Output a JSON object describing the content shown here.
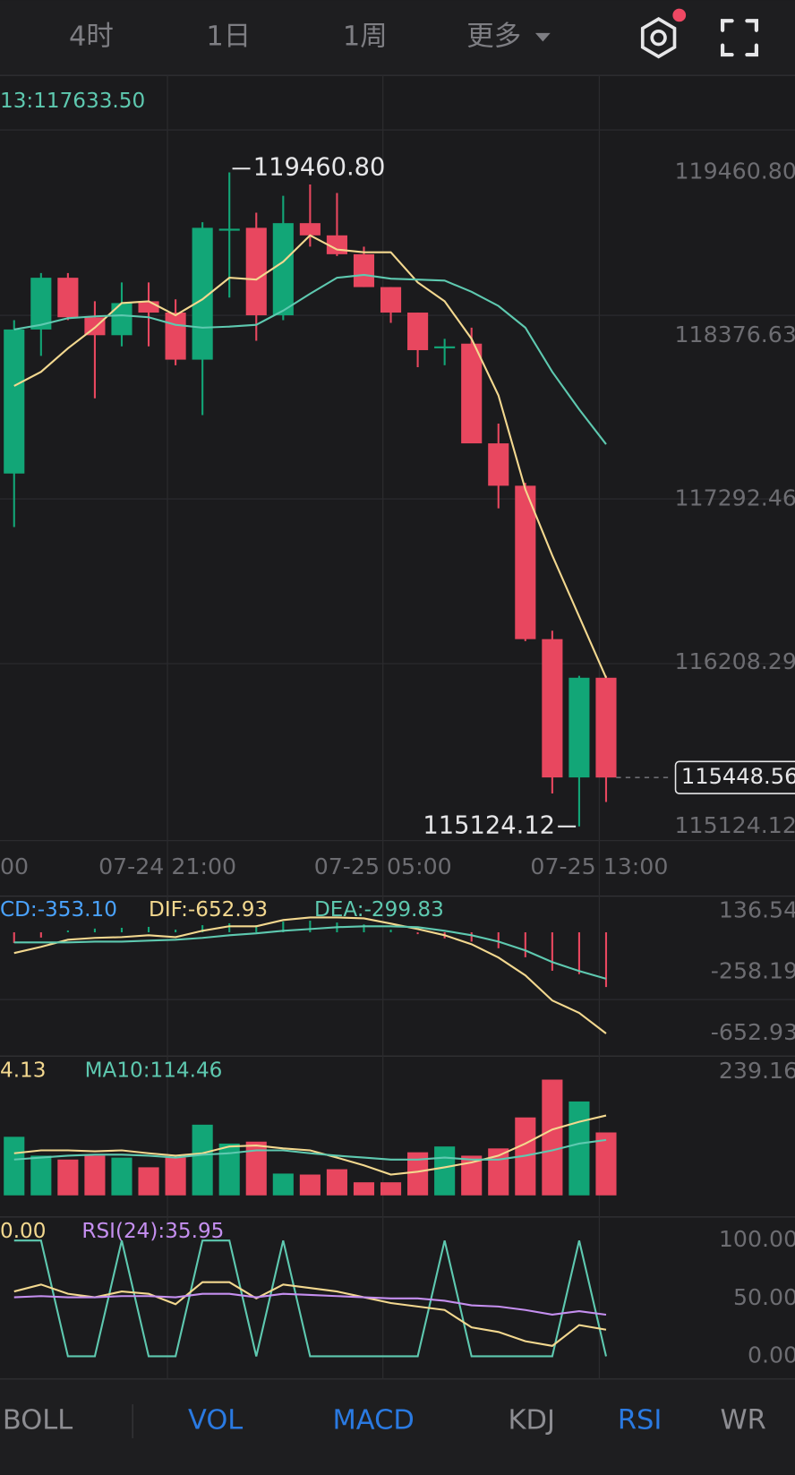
{
  "header": {
    "tabs": [
      "4时",
      "1日",
      "1周",
      "更多"
    ]
  },
  "chart_data": {
    "type": "candlestick",
    "ma_label": "13:117633.50",
    "xtick_labels": [
      "00",
      "07-24 21:00",
      "07-25 05:00",
      "07-25 13:00"
    ],
    "up_color": "#12a677",
    "down_color": "#e8475f",
    "open": [
      117464,
      118419,
      118762,
      118500,
      118381,
      118606,
      118531,
      118219,
      119074,
      119093,
      118513,
      119124,
      119043,
      118918,
      118700,
      118531,
      118294,
      118325,
      117664,
      117383,
      116366,
      115449,
      116110
    ],
    "high": [
      118481,
      118793,
      118793,
      118606,
      118731,
      118731,
      118619,
      119130,
      119460.8,
      119193,
      119305,
      119380,
      119324,
      118968,
      118700,
      118531,
      118357,
      118431,
      117795,
      117402,
      116422,
      116123,
      116123
    ],
    "low": [
      117109,
      118244,
      118481,
      117963,
      118307,
      118307,
      118182,
      117851,
      118631,
      118344,
      118481,
      118968,
      118906,
      118700,
      118463,
      118169,
      118182,
      117664,
      117233,
      116353,
      115343,
      115124.12,
      115286
    ],
    "close": [
      118419,
      118762,
      118500,
      118381,
      118594,
      118531,
      118219,
      119093,
      119087,
      118513,
      119124,
      119043,
      118918,
      118700,
      118531,
      118282,
      118307,
      117664,
      117383,
      116366,
      115449,
      116110,
      115448.56
    ],
    "series": [
      {
        "color": "#f3d88f",
        "values": [
          118045,
          118138,
          118294,
          118431,
          118594,
          118606,
          118513,
          118619,
          118762,
          118750,
          118868,
          119043,
          118949,
          118931,
          118931,
          118731,
          118606,
          118357,
          117982,
          117358,
          116921,
          116516,
          116110
        ]
      },
      {
        "color": "#5ec9b0",
        "values": [
          118419,
          118450,
          118494,
          118506,
          118513,
          118500,
          118450,
          118431,
          118438,
          118450,
          118544,
          118656,
          118762,
          118781,
          118756,
          118750,
          118743,
          118669,
          118575,
          118431,
          118138,
          117889,
          117658
        ]
      }
    ],
    "ylim": [
      115124.12,
      119460.8
    ],
    "yticks": [
      {
        "value": 119460.8,
        "label": "119460.80"
      },
      118376.63,
      117292.46,
      116208.29,
      115124.12
    ],
    "high_marker": {
      "value": 119460.8,
      "label": "119460.80"
    },
    "low_marker": 115124.12,
    "last_price": 115448.56,
    "macd": {
      "labels": [
        "CD:-353.10",
        "DIF:-652.93",
        "DEA:-299.83"
      ],
      "label_colors": [
        "#4aa3ff",
        "#f3d88f",
        "#5ec9b0"
      ],
      "ylim": [
        -652.93,
        136.54
      ],
      "yticks": [
        136.54,
        -258.19,
        -652.93
      ],
      "dif": [
        -134,
        -94,
        -48,
        -36,
        -31,
        -19,
        -31,
        10,
        39,
        39,
        79,
        96,
        96,
        90,
        56,
        21,
        -19,
        -77,
        -163,
        -278,
        -440,
        -520,
        -652.93
      ],
      "dea": [
        -65,
        -65,
        -65,
        -60,
        -60,
        -54,
        -48,
        -36,
        -19,
        -7,
        10,
        21,
        33,
        39,
        39,
        33,
        10,
        -19,
        -60,
        -117,
        -192,
        -250,
        -299.83
      ],
      "hist": [
        -69,
        -34,
        12,
        24,
        29,
        35,
        17,
        46,
        58,
        46,
        69,
        75,
        63,
        51,
        17,
        -12,
        -39,
        -60,
        -103,
        -161,
        -248,
        -270,
        -353.1
      ]
    },
    "volume": {
      "labels": [
        "4.13",
        "MA10:114.46"
      ],
      "label_colors": [
        "#f3d88f",
        "#5ec9b0"
      ],
      "ylim": [
        0,
        239.16
      ],
      "yticks": [
        239.16
      ],
      "values": [
        121,
        82,
        74,
        82,
        78,
        58,
        78,
        146,
        107,
        111,
        45,
        43,
        54,
        27,
        27,
        89,
        101,
        82,
        97,
        161,
        239.16,
        194,
        130
      ],
      "ma5": [
        87,
        93,
        93,
        91,
        93,
        87,
        82,
        87,
        101,
        103,
        97,
        93,
        78,
        62,
        43,
        49,
        58,
        68,
        82,
        107,
        136,
        152,
        165
      ],
      "ma10": [
        74,
        78,
        82,
        84,
        84,
        82,
        78,
        84,
        87,
        93,
        93,
        87,
        82,
        78,
        74,
        74,
        78,
        74,
        74,
        82,
        93,
        107,
        114.46
      ]
    },
    "rsi": {
      "labels": [
        "0.00",
        "RSI(24):35.95"
      ],
      "label_colors": [
        "#f3d88f",
        "#c58ff0"
      ],
      "ylim": [
        0,
        100
      ],
      "yticks": [
        {
          "value": 100,
          "label": "100.00"
        },
        {
          "value": 50,
          "label": "50.00"
        },
        {
          "value": 0,
          "label": "0.00"
        }
      ],
      "series": [
        {
          "color": "#5ec9b0",
          "values": [
            100,
            100,
            0,
            0,
            100,
            0,
            0,
            100,
            100,
            0,
            100,
            0,
            0,
            0,
            0,
            0,
            100,
            0,
            0,
            0,
            0,
            100,
            0
          ]
        },
        {
          "color": "#f3d88f",
          "values": [
            56,
            62,
            54,
            51,
            56,
            54,
            45,
            64,
            64,
            50,
            62,
            59,
            56,
            51,
            46,
            43,
            40,
            25,
            21,
            13,
            9,
            27,
            23
          ]
        },
        {
          "color": "#c58ff0",
          "values": [
            51,
            52,
            51,
            51,
            52,
            52,
            51,
            54,
            54,
            51,
            54,
            53,
            52,
            51,
            50,
            50,
            48,
            44,
            43,
            40,
            36,
            39,
            35.95
          ]
        }
      ]
    }
  },
  "footer": {
    "tabs": [
      "BOLL",
      "VOL",
      "MACD",
      "KDJ",
      "RSI",
      "WR"
    ],
    "active": [
      false,
      true,
      true,
      false,
      true,
      false
    ],
    "color": "#8d8d92",
    "active_color": "#2a7ae2"
  }
}
